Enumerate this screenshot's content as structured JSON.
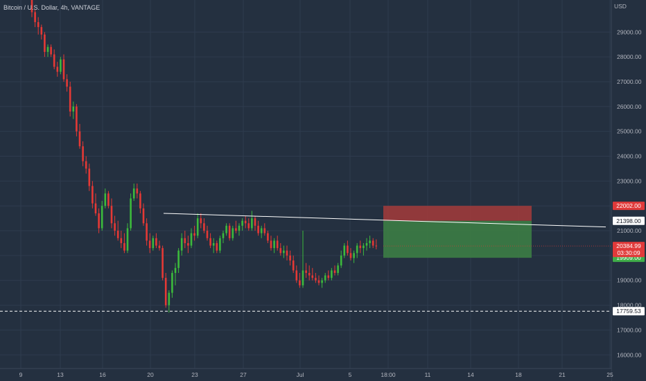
{
  "symbol_title": "Bitcoin / U.S. Dollar, 4h, VANTAGE",
  "currency": "USD",
  "colors": {
    "background": "#243040",
    "grid": "#2e3b4e",
    "up": "#26a69a",
    "up_bar": "#3cba3c",
    "down": "#e53935",
    "stop_zone": "#a53b3b",
    "target_zone": "#3c7d45",
    "trendline": "#ffffff",
    "support": "#ffffff",
    "badge_red": "#e03a3a",
    "badge_green": "#3fae49",
    "badge_white": "#ffffff"
  },
  "price_axis": {
    "labels": [
      "29000.00",
      "28000.00",
      "27000.00",
      "26000.00",
      "25000.00",
      "24000.00",
      "23000.00",
      "22000.00",
      "21000.00",
      "20000.00",
      "19000.00",
      "18000.00",
      "17000.00",
      "16000.00"
    ],
    "values": [
      29000,
      28000,
      27000,
      26000,
      25000,
      24000,
      23000,
      22000,
      21000,
      20000,
      19000,
      18000,
      17000,
      16000
    ],
    "range": [
      15450,
      29900
    ]
  },
  "time_axis": {
    "labels": [
      "9",
      "13",
      "16",
      "20",
      "23",
      "27",
      "Jul",
      "5",
      "18:00",
      "11",
      "14",
      "18",
      "21",
      "25"
    ]
  },
  "badges": {
    "stop_price": "22002.00",
    "trend_price": "21398.00",
    "last_price": "20384.99",
    "countdown": "03:30:09",
    "target_price": "19909.00",
    "support_price": "17759.53"
  },
  "levels": {
    "stop": 22002,
    "entry": 21398,
    "last": 20384.99,
    "target": 19909,
    "support": 17759.53
  },
  "trendline": {
    "start_price": 21700,
    "end_price": 21150
  },
  "chart_data": {
    "type": "candlestick",
    "title": "Bitcoin / U.S. Dollar, 4h, VANTAGE",
    "ylabel": "USD",
    "ylim": [
      15450,
      29900
    ],
    "x_tick_labels": [
      "9",
      "13",
      "16",
      "20",
      "23",
      "27",
      "Jul",
      "5",
      "18:00",
      "11",
      "14",
      "18",
      "21",
      "25"
    ],
    "series": [
      {
        "name": "BTCUSD",
        "candles": [
          [
            30300,
            30500,
            29600,
            29800
          ],
          [
            29800,
            29900,
            29200,
            29400
          ],
          [
            29400,
            29600,
            28900,
            29200
          ],
          [
            29200,
            29300,
            28700,
            28900
          ],
          [
            28900,
            29000,
            28000,
            28200
          ],
          [
            28200,
            28500,
            28000,
            28400
          ],
          [
            28400,
            28500,
            28000,
            28100
          ],
          [
            28100,
            28300,
            27500,
            27600
          ],
          [
            27600,
            27800,
            27200,
            27400
          ],
          [
            27400,
            28000,
            27300,
            27900
          ],
          [
            27900,
            28100,
            27000,
            27100
          ],
          [
            27100,
            27300,
            26600,
            26800
          ],
          [
            26800,
            27000,
            25600,
            25800
          ],
          [
            25800,
            26200,
            25500,
            26000
          ],
          [
            26000,
            26100,
            24800,
            25000
          ],
          [
            25000,
            25300,
            24300,
            24400
          ],
          [
            24400,
            24600,
            23600,
            23800
          ],
          [
            23800,
            24000,
            23300,
            23500
          ],
          [
            23500,
            23700,
            22600,
            22800
          ],
          [
            22800,
            23000,
            21900,
            22100
          ],
          [
            22100,
            22500,
            21600,
            21700
          ],
          [
            21700,
            21900,
            20900,
            21100
          ],
          [
            21100,
            22200,
            21000,
            22000
          ],
          [
            22000,
            22700,
            21900,
            22500
          ],
          [
            22500,
            22600,
            21900,
            22000
          ],
          [
            22000,
            22300,
            21100,
            21300
          ],
          [
            21300,
            21600,
            20800,
            21000
          ],
          [
            21000,
            21400,
            20600,
            20700
          ],
          [
            20700,
            21000,
            20300,
            20500
          ],
          [
            20500,
            20900,
            20100,
            20200
          ],
          [
            20200,
            21300,
            20100,
            21100
          ],
          [
            21100,
            22500,
            21000,
            22300
          ],
          [
            22300,
            22900,
            22200,
            22700
          ],
          [
            22700,
            22900,
            22300,
            22500
          ],
          [
            22500,
            22600,
            21700,
            21900
          ],
          [
            21900,
            22100,
            21200,
            21300
          ],
          [
            21300,
            21500,
            20400,
            20600
          ],
          [
            20600,
            20900,
            20100,
            20300
          ],
          [
            20300,
            20800,
            20200,
            20700
          ],
          [
            20700,
            20900,
            20300,
            20400
          ],
          [
            20400,
            20600,
            20200,
            20300
          ],
          [
            20300,
            20400,
            19000,
            19100
          ],
          [
            19100,
            19300,
            17900,
            18000
          ],
          [
            18000,
            18600,
            17700,
            18500
          ],
          [
            18500,
            19400,
            18300,
            19300
          ],
          [
            19300,
            19700,
            18800,
            19500
          ],
          [
            19500,
            20300,
            19300,
            20200
          ],
          [
            20200,
            20900,
            20000,
            20700
          ],
          [
            20700,
            21000,
            20300,
            20500
          ],
          [
            20500,
            20800,
            20100,
            20400
          ],
          [
            20400,
            21100,
            20300,
            20900
          ],
          [
            20900,
            21200,
            20600,
            20800
          ],
          [
            20800,
            21700,
            20700,
            21500
          ],
          [
            21500,
            21700,
            21100,
            21300
          ],
          [
            21300,
            21500,
            20900,
            21000
          ],
          [
            21000,
            21200,
            20600,
            20700
          ],
          [
            20700,
            20900,
            20300,
            20400
          ],
          [
            20400,
            20700,
            20100,
            20500
          ],
          [
            20500,
            20600,
            20100,
            20200
          ],
          [
            20200,
            20800,
            20100,
            20700
          ],
          [
            20700,
            21000,
            20500,
            20900
          ],
          [
            20900,
            21300,
            20800,
            21200
          ],
          [
            21200,
            21300,
            20600,
            20700
          ],
          [
            20700,
            21200,
            20600,
            21100
          ],
          [
            21100,
            21400,
            20900,
            21000
          ],
          [
            21000,
            21300,
            20800,
            21200
          ],
          [
            21200,
            21500,
            21000,
            21400
          ],
          [
            21400,
            21600,
            21100,
            21300
          ],
          [
            21300,
            21500,
            21000,
            21100
          ],
          [
            21100,
            21800,
            21000,
            21500
          ],
          [
            21500,
            21600,
            21000,
            21200
          ],
          [
            21200,
            21400,
            20800,
            20900
          ],
          [
            20900,
            21200,
            20700,
            21100
          ],
          [
            21100,
            21300,
            20800,
            20900
          ],
          [
            20900,
            21000,
            20500,
            20600
          ],
          [
            20600,
            20800,
            20200,
            20300
          ],
          [
            20300,
            20700,
            20100,
            20600
          ],
          [
            20600,
            20800,
            20200,
            20300
          ],
          [
            20300,
            20500,
            20000,
            20100
          ],
          [
            20100,
            20400,
            19900,
            20200
          ],
          [
            20200,
            20400,
            19800,
            20000
          ],
          [
            20000,
            20200,
            19600,
            19800
          ],
          [
            19800,
            20000,
            19300,
            19400
          ],
          [
            19400,
            19600,
            18900,
            19000
          ],
          [
            19000,
            19300,
            18700,
            18800
          ],
          [
            18800,
            21000,
            18700,
            19400
          ],
          [
            19400,
            19700,
            19100,
            19300
          ],
          [
            19300,
            19600,
            19000,
            19200
          ],
          [
            19200,
            19500,
            19000,
            19100
          ],
          [
            19100,
            19300,
            18900,
            19000
          ],
          [
            19000,
            19200,
            18800,
            18900
          ],
          [
            18900,
            19100,
            18700,
            19000
          ],
          [
            19000,
            19300,
            18900,
            19200
          ],
          [
            19200,
            19400,
            19000,
            19100
          ],
          [
            19100,
            19500,
            19000,
            19400
          ],
          [
            19400,
            19600,
            19200,
            19300
          ],
          [
            19300,
            19700,
            19200,
            19600
          ],
          [
            19600,
            20200,
            19500,
            20000
          ],
          [
            20000,
            20500,
            19900,
            20400
          ],
          [
            20400,
            20600,
            20000,
            20100
          ],
          [
            20100,
            20300,
            19800,
            19900
          ],
          [
            19900,
            20200,
            19700,
            20100
          ],
          [
            20100,
            20500,
            19900,
            20400
          ],
          [
            20400,
            20600,
            20100,
            20300
          ],
          [
            20300,
            20500,
            20000,
            20400
          ],
          [
            20400,
            20700,
            20200,
            20500
          ],
          [
            20500,
            20800,
            20300,
            20600
          ],
          [
            20600,
            20700,
            20300,
            20400
          ],
          [
            20400,
            20650,
            20250,
            20385
          ]
        ]
      }
    ],
    "annotations": {
      "trendline_prices": [
        21700,
        21150
      ],
      "stop_level": 22002,
      "entry_level": 21398,
      "target_level": 19909,
      "support_level": 17759.53
    }
  }
}
